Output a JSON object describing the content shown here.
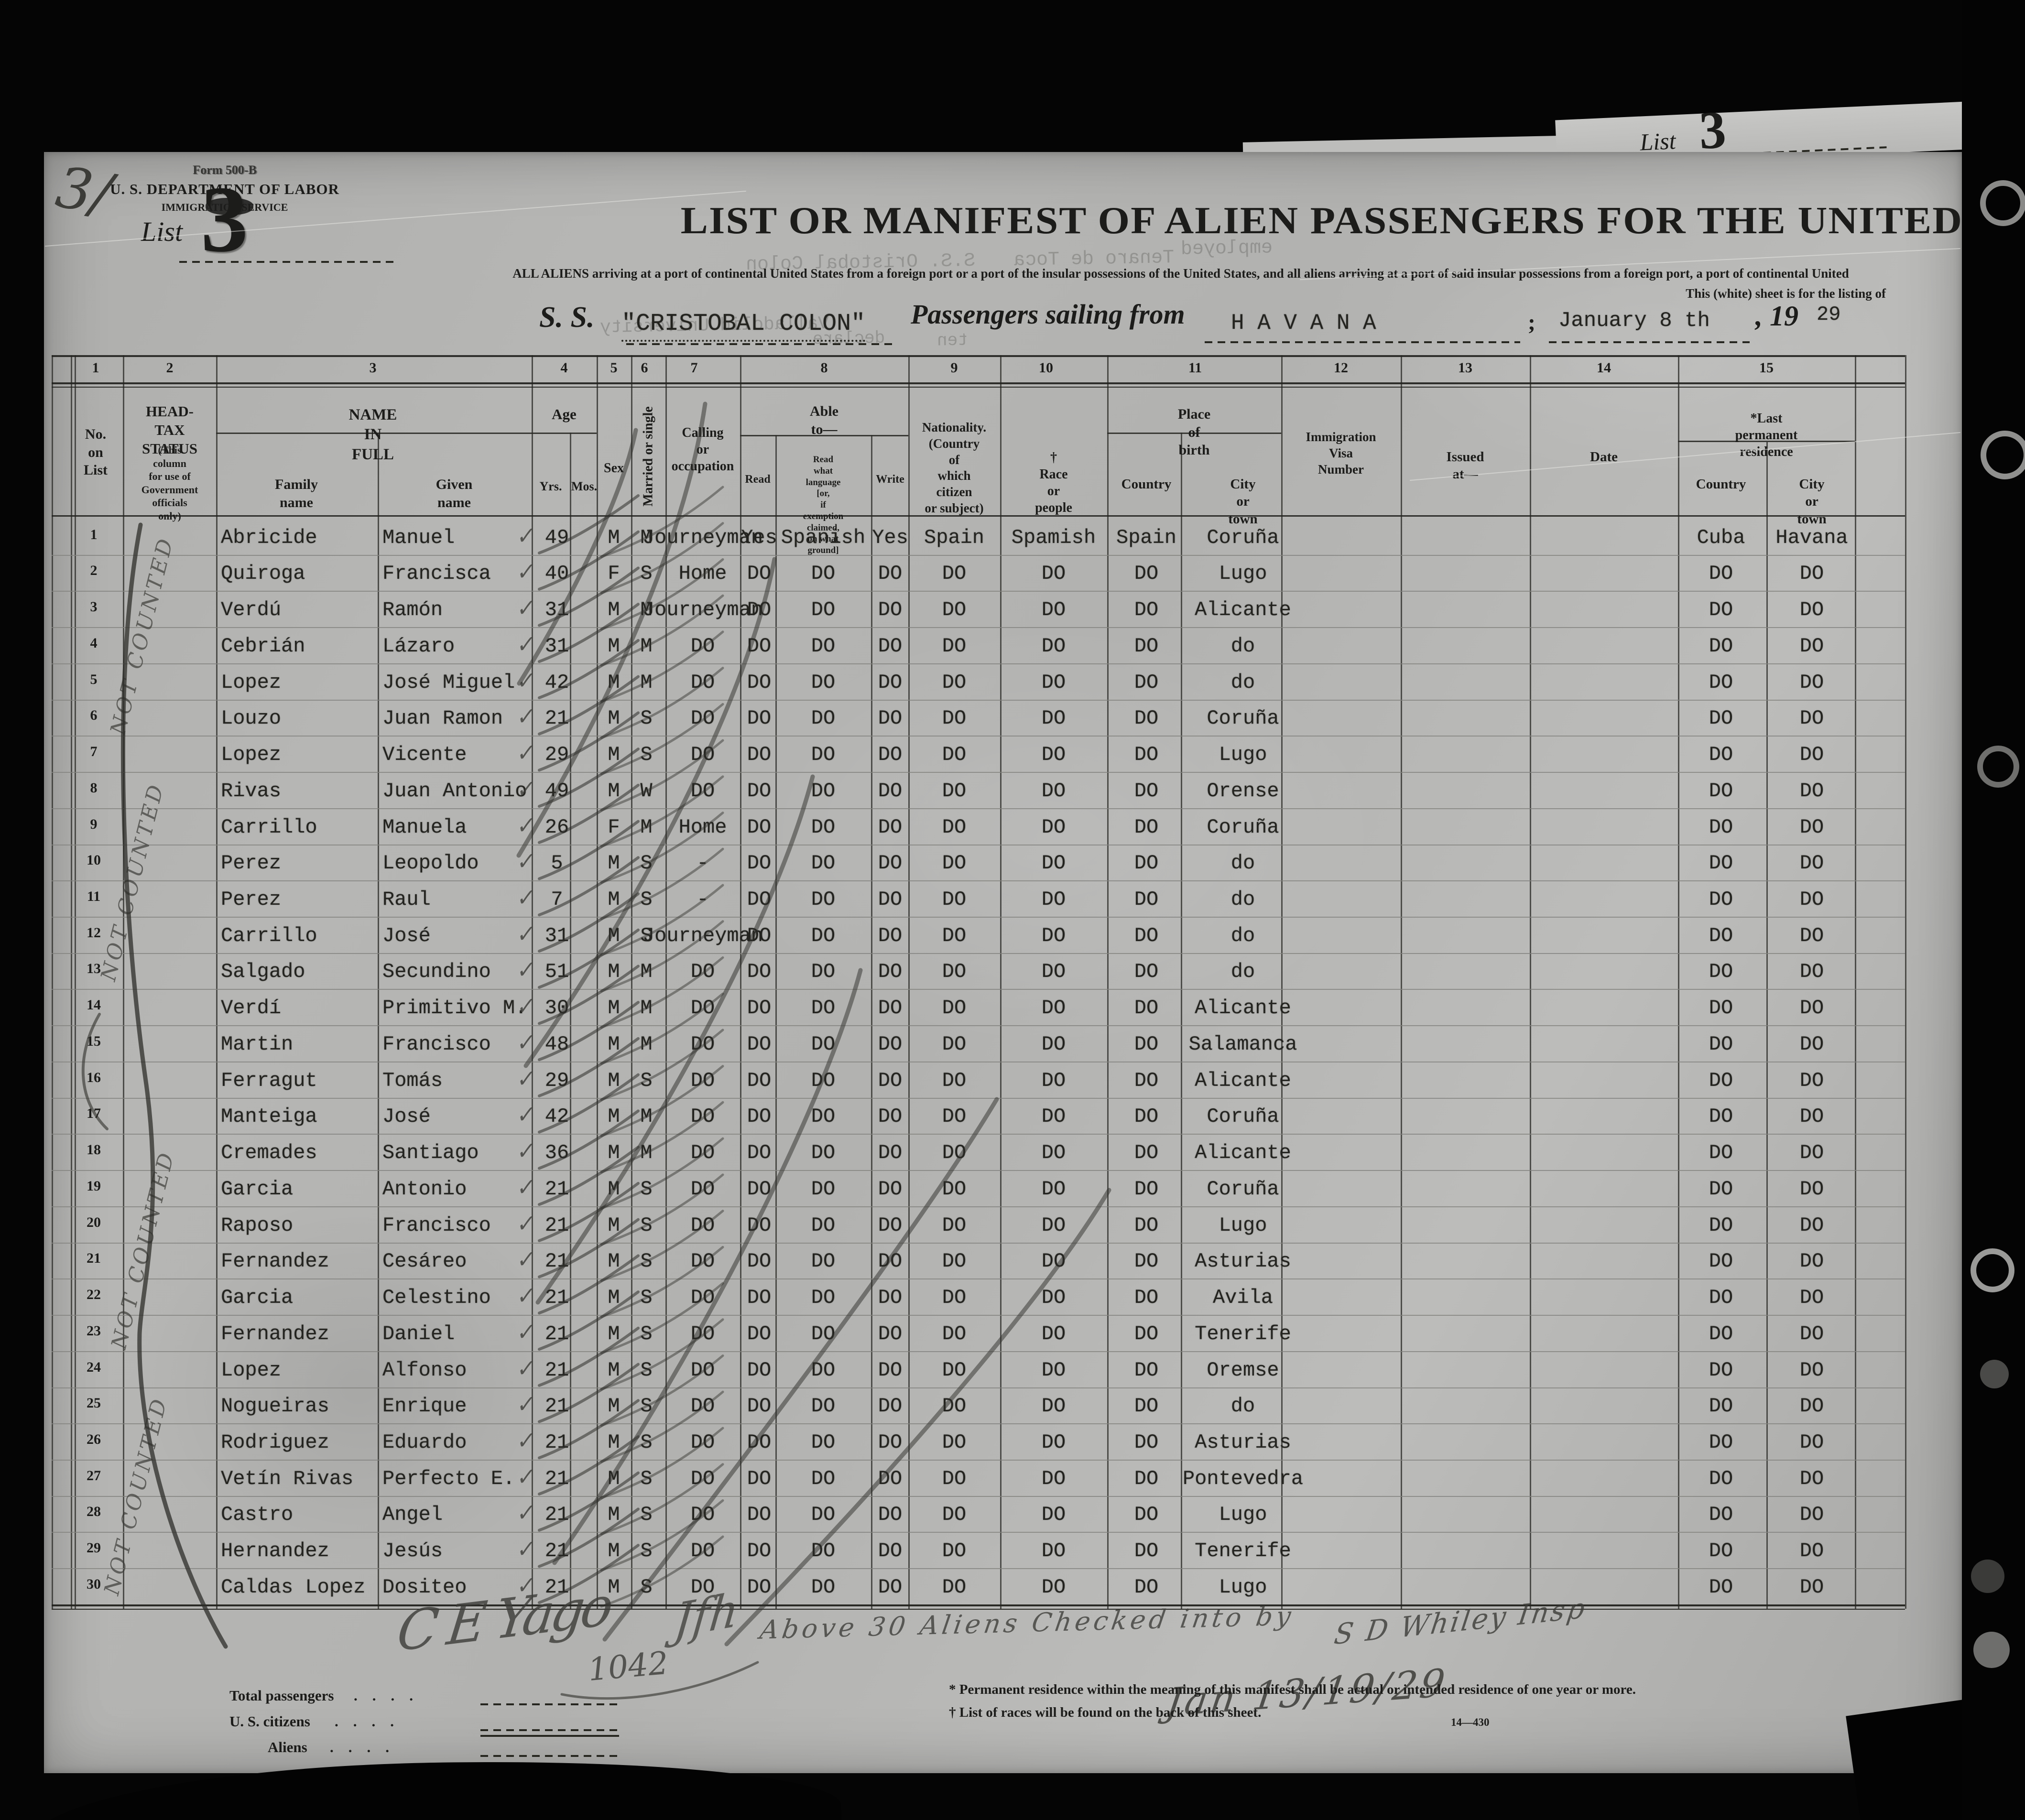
{
  "page": {
    "corner_note": "3/",
    "stack_list_label": "List",
    "stack_list_number": "3"
  },
  "form": {
    "form_number": "Form 500-B",
    "department": "U. S. DEPARTMENT OF LABOR",
    "service": "IMMIGRATION SERVICE",
    "list_label": "List",
    "list_number": "3",
    "title": "LIST OR MANIFEST OF ALIEN PASSENGERS FOR THE UNITED",
    "subtitle": "ALL ALIENS arriving at a port of continental United States from a foreign port or a port of the insular possessions of the United States, and all aliens arriving at a port of said insular possessions from a foreign port, a port of continental United",
    "subtitle2": "This (white) sheet is for the listing of",
    "ss_label": "S. S.",
    "ship_name": "\"CRISTOBAL COLON\"",
    "sailing_label": "Passengers sailing from",
    "port": "H A V A N A",
    "sail_date": "January 8 th",
    "year_prefix": ", 19",
    "year_suffix": "29",
    "comma": ";"
  },
  "ghosts": {
    "g1": "S.S. Oristobal Colon",
    "g2": "Tenaro de Toca",
    "g3": "employed",
    "g4": "Valladolid University",
    "g5": "declare",
    "g6": "ten"
  },
  "columns": {
    "numbers": [
      "1",
      "2",
      "3",
      "4",
      "5",
      "6",
      "7",
      "8",
      "9",
      "10",
      "11",
      "12",
      "13",
      "14",
      "15"
    ],
    "no_label": "No.\non\nList",
    "headtax1": "HEAD-TAX\nSTATUS",
    "headtax2": "(This column\nfor use of\nGovernment\nofficials only)",
    "name": "NAME IN FULL",
    "family": "Family name",
    "given": "Given name",
    "age": "Age",
    "yrs": "Yrs.",
    "mos": "Mos.",
    "sex": "Sex",
    "married": "Married or single",
    "calling": "Calling\nor\noccupation",
    "able": "Able to—",
    "read": "Read",
    "read_lang": "Read what language [or,\nif exemption claimed,\non what ground]",
    "write": "Write",
    "nationality": "Nationality.\n(Country of\nwhich citizen\nor subject)",
    "race": "† Race or people",
    "birth": "Place of birth",
    "country": "Country",
    "city": "City or town",
    "visa": "Immigration\nVisa\nNumber",
    "issued": "Issued at—",
    "date": "Date",
    "lastres": "*Last permanent residence"
  },
  "rows": [
    {
      "n": "1",
      "f": "Abricide",
      "g": "Manuel",
      "y": "49",
      "s": "M",
      "m": "M",
      "o": "Journeyman",
      "r": "Yes",
      "l": "Spanish",
      "w": "Yes",
      "na": "Spain",
      "ra": "Spamish",
      "bc": "Spain",
      "bt": "Coruña",
      "rc": "Cuba",
      "rt": "Havana"
    },
    {
      "n": "2",
      "f": "Quiroga",
      "g": "Francisca",
      "y": "40",
      "s": "F",
      "m": "S",
      "o": "Home",
      "r": "DO",
      "l": "DO",
      "w": "DO",
      "na": "DO",
      "ra": "DO",
      "bc": "DO",
      "bt": "Lugo",
      "rc": "DO",
      "rt": "DO"
    },
    {
      "n": "3",
      "f": "Verdú",
      "g": "Ramón",
      "y": "31",
      "s": "M",
      "m": "M",
      "o": "Journeyman",
      "r": "DO",
      "l": "DO",
      "w": "DO",
      "na": "DO",
      "ra": "DO",
      "bc": "DO",
      "bt": "Alicante",
      "rc": "DO",
      "rt": "DO"
    },
    {
      "n": "4",
      "f": "Cebrián",
      "g": "Lázaro",
      "y": "31",
      "s": "M",
      "m": "M",
      "o": "DO",
      "r": "DO",
      "l": "DO",
      "w": "DO",
      "na": "DO",
      "ra": "DO",
      "bc": "DO",
      "bt": "do",
      "rc": "DO",
      "rt": "DO"
    },
    {
      "n": "5",
      "f": "Lopez",
      "g": "José Miguel",
      "y": "42",
      "s": "M",
      "m": "M",
      "o": "DO",
      "r": "DO",
      "l": "DO",
      "w": "DO",
      "na": "DO",
      "ra": "DO",
      "bc": "DO",
      "bt": "do",
      "rc": "DO",
      "rt": "DO"
    },
    {
      "n": "6",
      "f": "Louzo",
      "g": "Juan Ramon",
      "y": "21",
      "s": "M",
      "m": "S",
      "o": "DO",
      "r": "DO",
      "l": "DO",
      "w": "DO",
      "na": "DO",
      "ra": "DO",
      "bc": "DO",
      "bt": "Coruña",
      "rc": "DO",
      "rt": "DO"
    },
    {
      "n": "7",
      "f": "Lopez",
      "g": "Vicente",
      "y": "29",
      "s": "M",
      "m": "S",
      "o": "DO",
      "r": "DO",
      "l": "DO",
      "w": "DO",
      "na": "DO",
      "ra": "DO",
      "bc": "DO",
      "bt": "Lugo",
      "rc": "DO",
      "rt": "DO"
    },
    {
      "n": "8",
      "f": "Rivas",
      "g": "Juan Antonio",
      "y": "49",
      "s": "M",
      "m": "W",
      "o": "DO",
      "r": "DO",
      "l": "DO",
      "w": "DO",
      "na": "DO",
      "ra": "DO",
      "bc": "DO",
      "bt": "Orense",
      "rc": "DO",
      "rt": "DO"
    },
    {
      "n": "9",
      "f": "Carrillo",
      "g": "Manuela",
      "y": "26",
      "s": "F",
      "m": "M",
      "o": "Home",
      "r": "DO",
      "l": "DO",
      "w": "DO",
      "na": "DO",
      "ra": "DO",
      "bc": "DO",
      "bt": "Coruña",
      "rc": "DO",
      "rt": "DO"
    },
    {
      "n": "10",
      "f": "Perez",
      "g": "Leopoldo",
      "y": "5",
      "s": "M",
      "m": "S",
      "o": "-",
      "r": "DO",
      "l": "DO",
      "w": "DO",
      "na": "DO",
      "ra": "DO",
      "bc": "DO",
      "bt": "do",
      "rc": "DO",
      "rt": "DO"
    },
    {
      "n": "11",
      "f": "Perez",
      "g": "Raul",
      "y": "7",
      "s": "M",
      "m": "S",
      "o": "-",
      "r": "DO",
      "l": "DO",
      "w": "DO",
      "na": "DO",
      "ra": "DO",
      "bc": "DO",
      "bt": "do",
      "rc": "DO",
      "rt": "DO"
    },
    {
      "n": "12",
      "f": "Carrillo",
      "g": "José",
      "y": "31",
      "s": "M",
      "m": "S",
      "o": "Journeyman",
      "r": "DO",
      "l": "DO",
      "w": "DO",
      "na": "DO",
      "ra": "DO",
      "bc": "DO",
      "bt": "do",
      "rc": "DO",
      "rt": "DO"
    },
    {
      "n": "13",
      "f": "Salgado",
      "g": "Secundino",
      "y": "51",
      "s": "M",
      "m": "M",
      "o": "DO",
      "r": "DO",
      "l": "DO",
      "w": "DO",
      "na": "DO",
      "ra": "DO",
      "bc": "DO",
      "bt": "do",
      "rc": "DO",
      "rt": "DO"
    },
    {
      "n": "14",
      "f": "Verdí",
      "g": "Primitivo M.",
      "y": "30",
      "s": "M",
      "m": "M",
      "o": "DO",
      "r": "DO",
      "l": "DO",
      "w": "DO",
      "na": "DO",
      "ra": "DO",
      "bc": "DO",
      "bt": "Alicante",
      "rc": "DO",
      "rt": "DO"
    },
    {
      "n": "15",
      "f": "Martin",
      "g": "Francisco",
      "y": "48",
      "s": "M",
      "m": "M",
      "o": "DO",
      "r": "DO",
      "l": "DO",
      "w": "DO",
      "na": "DO",
      "ra": "DO",
      "bc": "DO",
      "bt": "Salamanca",
      "rc": "DO",
      "rt": "DO"
    },
    {
      "n": "16",
      "f": "Ferragut",
      "g": "Tomás",
      "y": "29",
      "s": "M",
      "m": "S",
      "o": "DO",
      "r": "DO",
      "l": "DO",
      "w": "DO",
      "na": "DO",
      "ra": "DO",
      "bc": "DO",
      "bt": "Alicante",
      "rc": "DO",
      "rt": "DO"
    },
    {
      "n": "17",
      "f": "Manteiga",
      "g": "José",
      "y": "42",
      "s": "M",
      "m": "M",
      "o": "DO",
      "r": "DO",
      "l": "DO",
      "w": "DO",
      "na": "DO",
      "ra": "DO",
      "bc": "DO",
      "bt": "Coruña",
      "rc": "DO",
      "rt": "DO"
    },
    {
      "n": "18",
      "f": "Cremades",
      "g": "Santiago",
      "y": "36",
      "s": "M",
      "m": "M",
      "o": "DO",
      "r": "DO",
      "l": "DO",
      "w": "DO",
      "na": "DO",
      "ra": "DO",
      "bc": "DO",
      "bt": "Alicante",
      "rc": "DO",
      "rt": "DO"
    },
    {
      "n": "19",
      "f": "Garcia",
      "g": "Antonio",
      "y": "21",
      "s": "M",
      "m": "S",
      "o": "DO",
      "r": "DO",
      "l": "DO",
      "w": "DO",
      "na": "DO",
      "ra": "DO",
      "bc": "DO",
      "bt": "Coruña",
      "rc": "DO",
      "rt": "DO"
    },
    {
      "n": "20",
      "f": "Raposo",
      "g": "Francisco",
      "y": "21",
      "s": "M",
      "m": "S",
      "o": "DO",
      "r": "DO",
      "l": "DO",
      "w": "DO",
      "na": "DO",
      "ra": "DO",
      "bc": "DO",
      "bt": "Lugo",
      "rc": "DO",
      "rt": "DO"
    },
    {
      "n": "21",
      "f": "Fernandez",
      "g": "Cesáreo",
      "y": "21",
      "s": "M",
      "m": "S",
      "o": "DO",
      "r": "DO",
      "l": "DO",
      "w": "DO",
      "na": "DO",
      "ra": "DO",
      "bc": "DO",
      "bt": "Asturias",
      "rc": "DO",
      "rt": "DO"
    },
    {
      "n": "22",
      "f": "Garcia",
      "g": "Celestino",
      "y": "21",
      "s": "M",
      "m": "S",
      "o": "DO",
      "r": "DO",
      "l": "DO",
      "w": "DO",
      "na": "DO",
      "ra": "DO",
      "bc": "DO",
      "bt": "Avila",
      "rc": "DO",
      "rt": "DO"
    },
    {
      "n": "23",
      "f": "Fernandez",
      "g": "Daniel",
      "y": "21",
      "s": "M",
      "m": "S",
      "o": "DO",
      "r": "DO",
      "l": "DO",
      "w": "DO",
      "na": "DO",
      "ra": "DO",
      "bc": "DO",
      "bt": "Tenerife",
      "rc": "DO",
      "rt": "DO"
    },
    {
      "n": "24",
      "f": "Lopez",
      "g": "Alfonso",
      "y": "21",
      "s": "M",
      "m": "S",
      "o": "DO",
      "r": "DO",
      "l": "DO",
      "w": "DO",
      "na": "DO",
      "ra": "DO",
      "bc": "DO",
      "bt": "Oremse",
      "rc": "DO",
      "rt": "DO"
    },
    {
      "n": "25",
      "f": "Nogueiras",
      "g": "Enrique",
      "y": "21",
      "s": "M",
      "m": "S",
      "o": "DO",
      "r": "DO",
      "l": "DO",
      "w": "DO",
      "na": "DO",
      "ra": "DO",
      "bc": "DO",
      "bt": "do",
      "rc": "DO",
      "rt": "DO"
    },
    {
      "n": "26",
      "f": "Rodriguez",
      "g": "Eduardo",
      "y": "21",
      "s": "M",
      "m": "S",
      "o": "DO",
      "r": "DO",
      "l": "DO",
      "w": "DO",
      "na": "DO",
      "ra": "DO",
      "bc": "DO",
      "bt": "Asturias",
      "rc": "DO",
      "rt": "DO"
    },
    {
      "n": "27",
      "f": "Vetín Rivas",
      "g": "Perfecto E.",
      "y": "21",
      "s": "M",
      "m": "S",
      "o": "DO",
      "r": "DO",
      "l": "DO",
      "w": "DO",
      "na": "DO",
      "ra": "DO",
      "bc": "DO",
      "bt": "Pontevedra",
      "rc": "DO",
      "rt": "DO"
    },
    {
      "n": "28",
      "f": "Castro",
      "g": "Angel",
      "y": "21",
      "s": "M",
      "m": "S",
      "o": "DO",
      "r": "DO",
      "l": "DO",
      "w": "DO",
      "na": "DO",
      "ra": "DO",
      "bc": "DO",
      "bt": "Lugo",
      "rc": "DO",
      "rt": "DO"
    },
    {
      "n": "29",
      "f": "Hernandez",
      "g": "Jesús",
      "y": "21",
      "s": "M",
      "m": "S",
      "o": "DO",
      "r": "DO",
      "l": "DO",
      "w": "DO",
      "na": "DO",
      "ra": "DO",
      "bc": "DO",
      "bt": "Tenerife",
      "rc": "DO",
      "rt": "DO"
    },
    {
      "n": "30",
      "f": "Caldas Lopez",
      "g": "Dositeo",
      "y": "21",
      "s": "M",
      "m": "S",
      "o": "DO",
      "r": "DO",
      "l": "DO",
      "w": "DO",
      "na": "DO",
      "ra": "DO",
      "bc": "DO",
      "bt": "Lugo",
      "rc": "DO",
      "rt": "DO"
    }
  ],
  "annotations": {
    "not_counted": "NOT COUNTED",
    "checkmark": "✓",
    "above_note": "Above 30 Aliens Checked into by",
    "sig1": "C E Yago",
    "sig2": "Jfh",
    "sig3": "S D Whiley Insp",
    "number_note": "1042",
    "date_note": "Jan 13/19/29"
  },
  "footer": {
    "total_label": "Total passengers",
    "citizens_label": "U. S. citizens",
    "aliens_label": "Aliens",
    "dots": ".    .    .    .",
    "footnote1": "* Permanent residence within the meaning of this manifest shall be actual or intended residence of one year or more.",
    "footnote2": "† List of races will be found on the back of this sheet.",
    "form_code": "14—430"
  }
}
